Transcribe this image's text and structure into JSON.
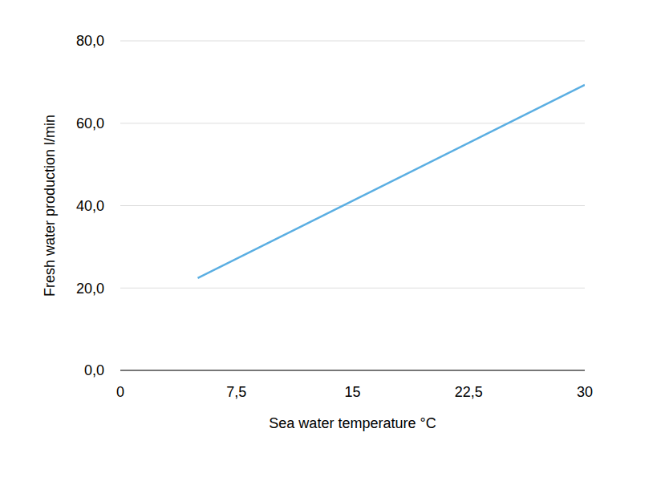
{
  "chart_data": {
    "type": "line",
    "x_label": "Sea water temperature °C",
    "y_label": "Fresh water production l/min",
    "x": [
      5,
      30
    ],
    "values": [
      22.4,
      69.3
    ],
    "color": "#5aaee2",
    "xlim": [
      0,
      30
    ],
    "xticks": [
      0,
      {
        "value": 7.5,
        "label": "7,5"
      },
      15,
      {
        "value": 22.5,
        "label": "22,5"
      },
      30
    ],
    "ylim": [
      0,
      80
    ],
    "yticks": [
      {
        "value": 0,
        "label": "0,0"
      },
      {
        "value": 20,
        "label": "20,0"
      },
      {
        "value": 40,
        "label": "40,0"
      },
      {
        "value": 60,
        "label": "60,0"
      },
      {
        "value": 80,
        "label": "80,0"
      }
    ],
    "grid": true
  }
}
